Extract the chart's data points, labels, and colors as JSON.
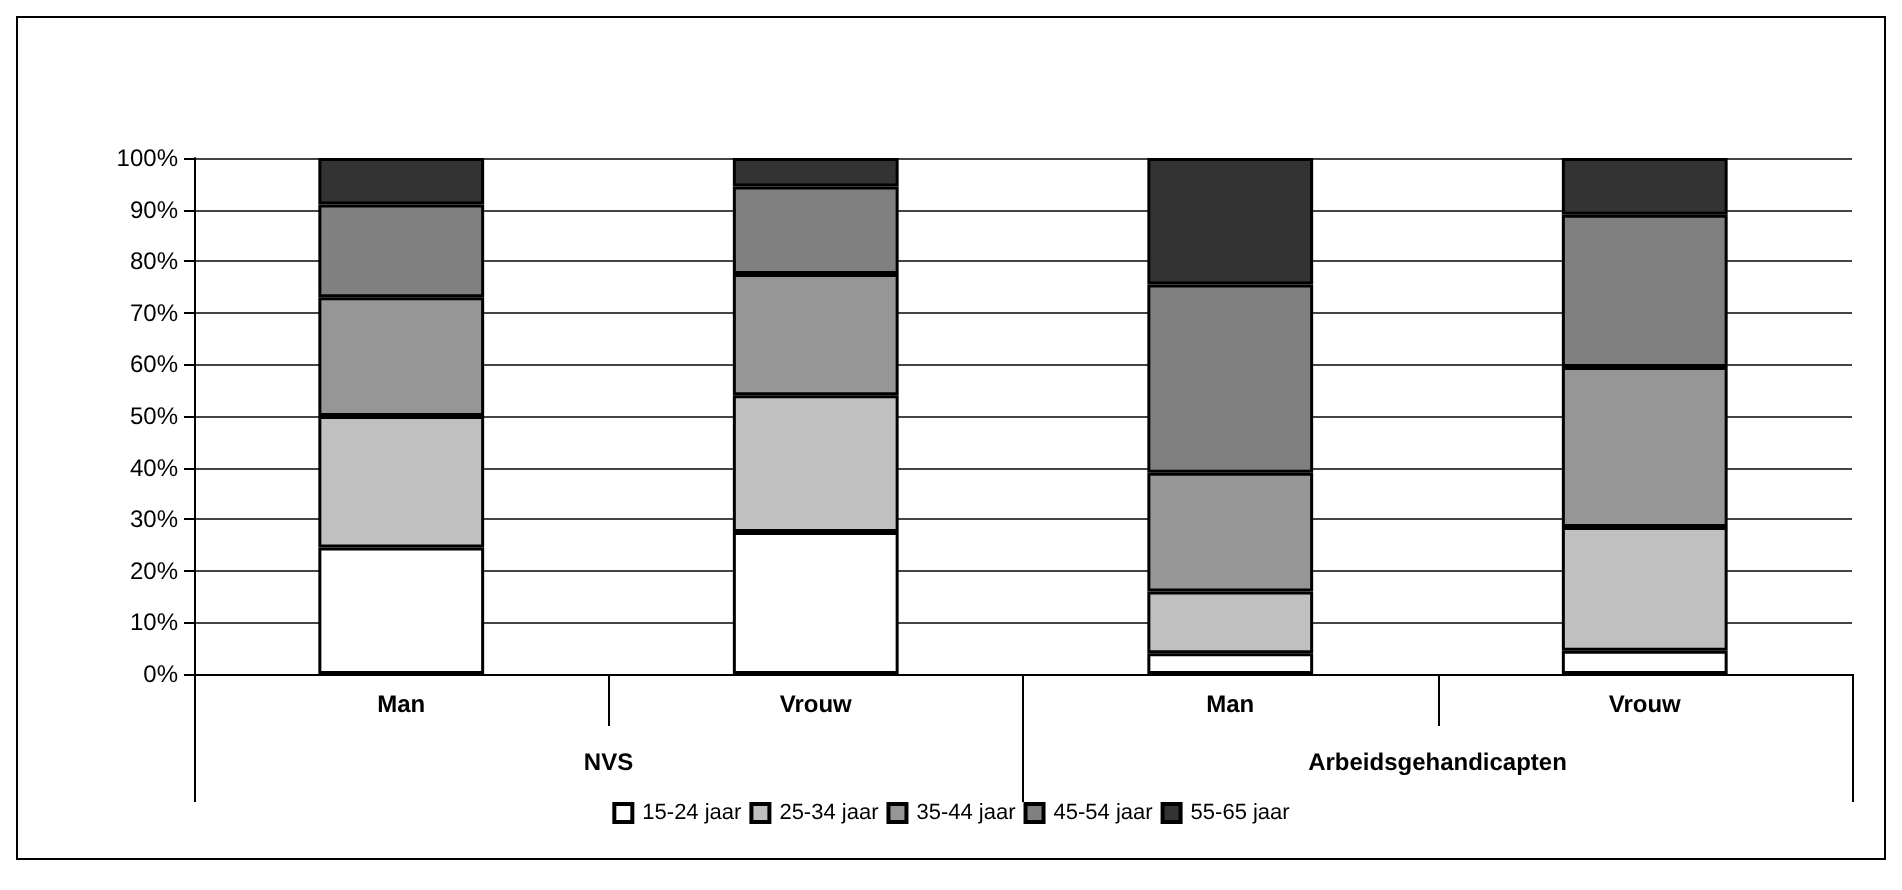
{
  "chart_data": {
    "type": "bar",
    "stacked": true,
    "categories": [
      "Man",
      "Vrouw",
      "Man",
      "Vrouw"
    ],
    "annotations": [
      "NVS",
      "Arbeidsgehandicapten"
    ],
    "series": [
      {
        "name": "15-24 jaar",
        "color": "#ffffff",
        "values": [
          24.5,
          27.5,
          4,
          4.5
        ]
      },
      {
        "name": "25-34 jaar",
        "color": "#c0c0c0",
        "values": [
          25.5,
          26.5,
          12,
          24
        ]
      },
      {
        "name": "35-44 jaar",
        "color": "#969696",
        "values": [
          23,
          23.5,
          23,
          31
        ]
      },
      {
        "name": "45-54 jaar",
        "color": "#808080",
        "values": [
          18,
          17,
          36.5,
          29.5
        ]
      },
      {
        "name": "55-65 jaar",
        "color": "#333333",
        "values": [
          9,
          5.5,
          24.5,
          11
        ]
      }
    ],
    "ylim": [
      0,
      100
    ],
    "yticks": [
      {
        "value": 0,
        "label": "0%"
      },
      {
        "value": 10,
        "label": "10%"
      },
      {
        "value": 20,
        "label": "20%"
      },
      {
        "value": 30,
        "label": "30%"
      },
      {
        "value": 40,
        "label": "40%"
      },
      {
        "value": 50,
        "label": "50%"
      },
      {
        "value": 60,
        "label": "60%"
      },
      {
        "value": 70,
        "label": "70%"
      },
      {
        "value": 80,
        "label": "80%"
      },
      {
        "value": 90,
        "label": "90%"
      },
      {
        "value": 100,
        "label": "100%"
      }
    ],
    "grid": "y",
    "legend": "bottom"
  }
}
